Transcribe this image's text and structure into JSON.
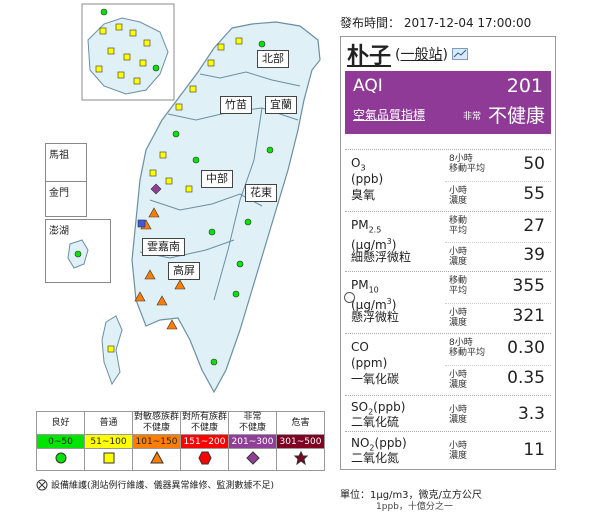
{
  "publish": {
    "label": "發布時間：",
    "time": "2017-12-04 17:00:00"
  },
  "station": {
    "name": "朴子",
    "type_open": "(",
    "type": "一般站",
    "type_close": ")"
  },
  "aqi": {
    "label": "AQI",
    "value": "201",
    "desc_label": "空氣品質指標",
    "status_small": "非常",
    "status": "不健康",
    "color": "#8e3a96"
  },
  "pollutants": [
    {
      "name1": "O3",
      "name2": "(ppb)",
      "name3": "臭氧",
      "subs": [
        {
          "l1": "8小時",
          "l2": "移動平均",
          "v": "50"
        },
        {
          "l1": "小時",
          "l2": "濃度",
          "v": "55"
        }
      ]
    },
    {
      "name1": "PM2.5",
      "name2": "(μg/m3)",
      "name3": "細懸浮微粒",
      "subs": [
        {
          "l1": "移動",
          "l2": "平均",
          "v": "27"
        },
        {
          "l1": "小時",
          "l2": "濃度",
          "v": "39"
        }
      ]
    },
    {
      "name1": "PM10",
      "name2": "(μg/m3)",
      "name3": "懸浮微粒",
      "subs": [
        {
          "l1": "移動",
          "l2": "平均",
          "v": "355"
        },
        {
          "l1": "小時",
          "l2": "濃度",
          "v": "321"
        }
      ]
    },
    {
      "name1": "CO",
      "name2": "(ppm)",
      "name3": "一氧化碳",
      "subs": [
        {
          "l1": "8小時",
          "l2": "移動平均",
          "v": "0.30"
        },
        {
          "l1": "小時",
          "l2": "濃度",
          "v": "0.35"
        }
      ]
    },
    {
      "name1": "SO2(ppb)",
      "name2": "",
      "name3": "二氧化硫",
      "subs": [
        {
          "l1": "小時",
          "l2": "濃度",
          "v": "3.3"
        }
      ]
    },
    {
      "name1": "NO2(ppb)",
      "name2": "",
      "name3": "二氧化氮",
      "subs": [
        {
          "l1": "小時",
          "l2": "濃度",
          "v": "11"
        }
      ]
    }
  ],
  "regions": [
    "北部",
    "竹苗",
    "宜蘭",
    "中部",
    "花東",
    "雲嘉南",
    "高屏"
  ],
  "islands": [
    "馬祖",
    "金門",
    "澎湖"
  ],
  "legend": [
    {
      "l1": "良好",
      "l2": "",
      "range": "0~50",
      "color": "#00e400",
      "shape": "circle"
    },
    {
      "l1": "普通",
      "l2": "",
      "range": "51~100",
      "color": "#ffff00",
      "shape": "square"
    },
    {
      "l1": "對敏感族群",
      "l2": "不健康",
      "range": "101~150",
      "color": "#ff7e00",
      "shape": "triangle"
    },
    {
      "l1": "對所有族群",
      "l2": "不健康",
      "range": "151~200",
      "color": "#ff0000",
      "shape": "hexagon"
    },
    {
      "l1": "非常",
      "l2": "不健康",
      "range": "201~300",
      "color": "#8f3f97",
      "shape": "diamond"
    },
    {
      "l1": "危害",
      "l2": "",
      "range": "301~500",
      "color": "#7e0023",
      "shape": "star"
    }
  ],
  "maintenance": "設備維護(測站例行維護、儀器異常維修、監測數據不足)",
  "units": {
    "line1": "單位：1μg/m3，微克/立方公尺",
    "line2": "1ppb，十億分之一"
  }
}
